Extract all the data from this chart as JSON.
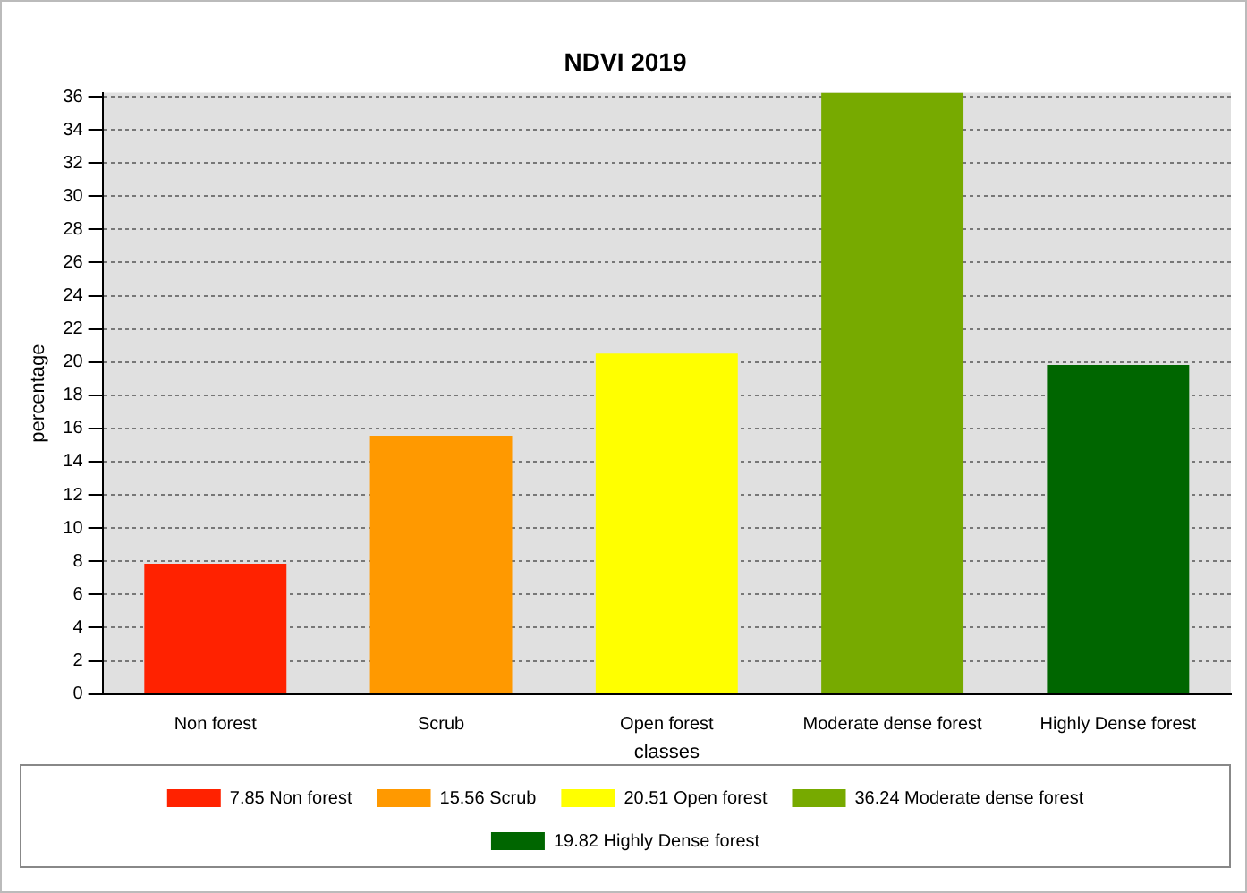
{
  "chart_data": {
    "type": "bar",
    "title": "NDVI 2019",
    "xlabel": "classes",
    "ylabel": "percentage",
    "categories": [
      "Non forest",
      "Scrub",
      "Open forest",
      "Moderate dense forest",
      "Highly Dense forest"
    ],
    "series": [
      {
        "name": "7.85 Non forest",
        "color": "#ff2200",
        "values": [
          7.85,
          null,
          null,
          null,
          null
        ]
      },
      {
        "name": "15.56 Scrub",
        "color": "#ff9900",
        "values": [
          null,
          15.56,
          null,
          null,
          null
        ]
      },
      {
        "name": "20.51 Open forest",
        "color": "#ffff00",
        "values": [
          null,
          null,
          20.51,
          null,
          null
        ]
      },
      {
        "name": "36.24 Moderate dense forest",
        "color": "#77aa00",
        "values": [
          null,
          null,
          null,
          36.24,
          null
        ]
      },
      {
        "name": "19.82 Highly Dense forest",
        "color": "#006600",
        "values": [
          null,
          null,
          null,
          null,
          19.82
        ]
      }
    ],
    "ylim": [
      0,
      36.24
    ],
    "yticks": [
      0,
      2,
      4,
      6,
      8,
      10,
      12,
      14,
      16,
      18,
      20,
      22,
      24,
      26,
      28,
      30,
      32,
      34,
      36
    ],
    "grid": "y",
    "legend": "bottom"
  }
}
